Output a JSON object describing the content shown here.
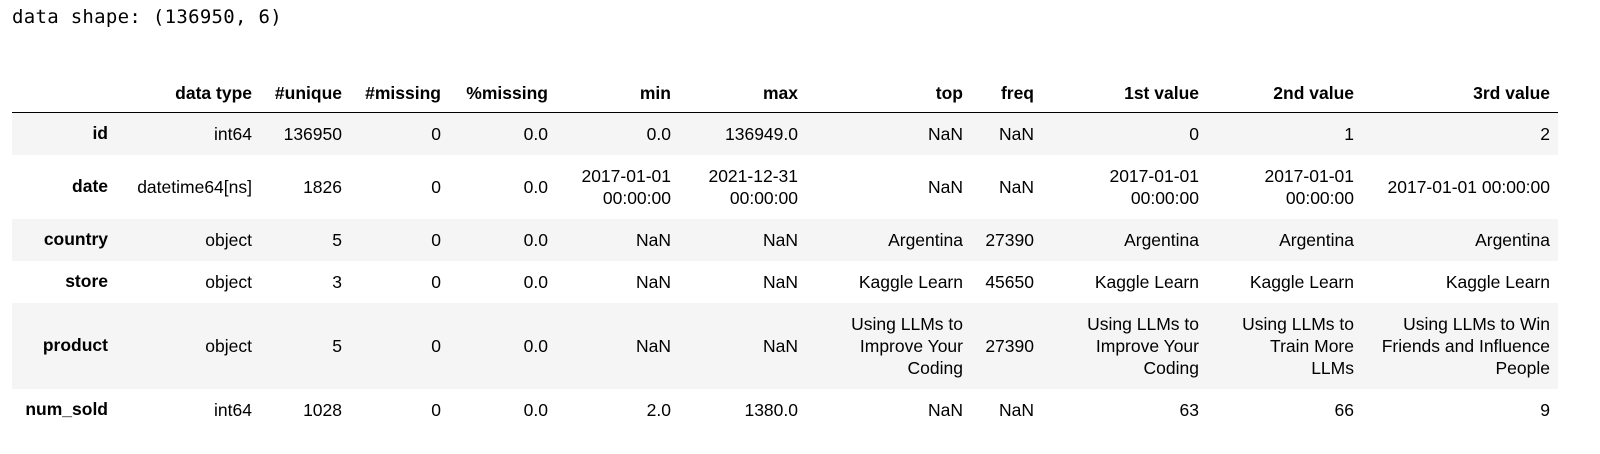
{
  "header_line": "data shape: (136950, 6)",
  "table": {
    "columns": [
      "",
      "data type",
      "#unique",
      "#missing",
      "%missing",
      "min",
      "max",
      "top",
      "freq",
      "1st value",
      "2nd value",
      "3rd value"
    ],
    "rows": [
      {
        "label": "id",
        "cells": [
          "int64",
          "136950",
          "0",
          "0.0",
          "0.0",
          "136949.0",
          "NaN",
          "NaN",
          "0",
          "1",
          "2"
        ]
      },
      {
        "label": "date",
        "cells": [
          "datetime64[ns]",
          "1826",
          "0",
          "0.0",
          "2017-01-01 00:00:00",
          "2021-12-31 00:00:00",
          "NaN",
          "NaN",
          "2017-01-01 00:00:00",
          "2017-01-01 00:00:00",
          "2017-01-01 00:00:00"
        ]
      },
      {
        "label": "country",
        "cells": [
          "object",
          "5",
          "0",
          "0.0",
          "NaN",
          "NaN",
          "Argentina",
          "27390",
          "Argentina",
          "Argentina",
          "Argentina"
        ]
      },
      {
        "label": "store",
        "cells": [
          "object",
          "3",
          "0",
          "0.0",
          "NaN",
          "NaN",
          "Kaggle Learn",
          "45650",
          "Kaggle Learn",
          "Kaggle Learn",
          "Kaggle Learn"
        ]
      },
      {
        "label": "product",
        "cells": [
          "object",
          "5",
          "0",
          "0.0",
          "NaN",
          "NaN",
          "Using LLMs to Improve Your Coding",
          "27390",
          "Using LLMs to Improve Your Coding",
          "Using LLMs to Train More LLMs",
          "Using LLMs to Win Friends and Influence People"
        ]
      },
      {
        "label": "num_sold",
        "cells": [
          "int64",
          "1028",
          "0",
          "0.0",
          "2.0",
          "1380.0",
          "NaN",
          "NaN",
          "63",
          "66",
          "9"
        ]
      }
    ]
  }
}
